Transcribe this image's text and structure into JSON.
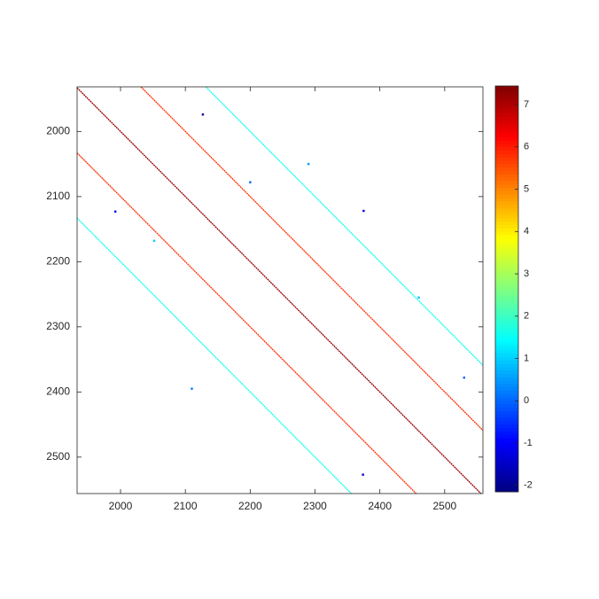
{
  "chart_data": {
    "type": "matrix",
    "xlim": [
      1933,
      2559
    ],
    "ylim": [
      1931.5,
      2556
    ],
    "xticks": [
      2000,
      2100,
      2200,
      2300,
      2400,
      2500
    ],
    "yticks": [
      2000,
      2100,
      2200,
      2300,
      2400,
      2500
    ],
    "y_reversed": true,
    "clim": [
      -2.15,
      7.44
    ],
    "cticks": [
      -2,
      -1,
      0,
      1,
      2,
      3,
      4,
      5,
      6,
      7
    ],
    "colormap": "jet",
    "diagonals": [
      {
        "offset": -200,
        "value": 1.6
      },
      {
        "offset": -100,
        "value": 5.8
      },
      {
        "offset": 0,
        "value": 7.2
      },
      {
        "offset": 100,
        "value": 5.8
      },
      {
        "offset": 200,
        "value": 1.6
      }
    ],
    "points": [
      {
        "x": 2127,
        "y": 1974,
        "value": -2
      },
      {
        "x": 2375,
        "y": 2122,
        "value": -1
      },
      {
        "x": 2530,
        "y": 2378,
        "value": 0
      },
      {
        "x": 2374,
        "y": 2527,
        "value": -1.5
      },
      {
        "x": 1992,
        "y": 2123,
        "value": -1
      },
      {
        "x": 2200,
        "y": 2078,
        "value": 0
      },
      {
        "x": 2052,
        "y": 2168,
        "value": 1
      },
      {
        "x": 2290,
        "y": 2050,
        "value": 0.5
      },
      {
        "x": 2460,
        "y": 2255,
        "value": 0.8
      },
      {
        "x": 2110,
        "y": 2395,
        "value": 0.2
      }
    ]
  }
}
